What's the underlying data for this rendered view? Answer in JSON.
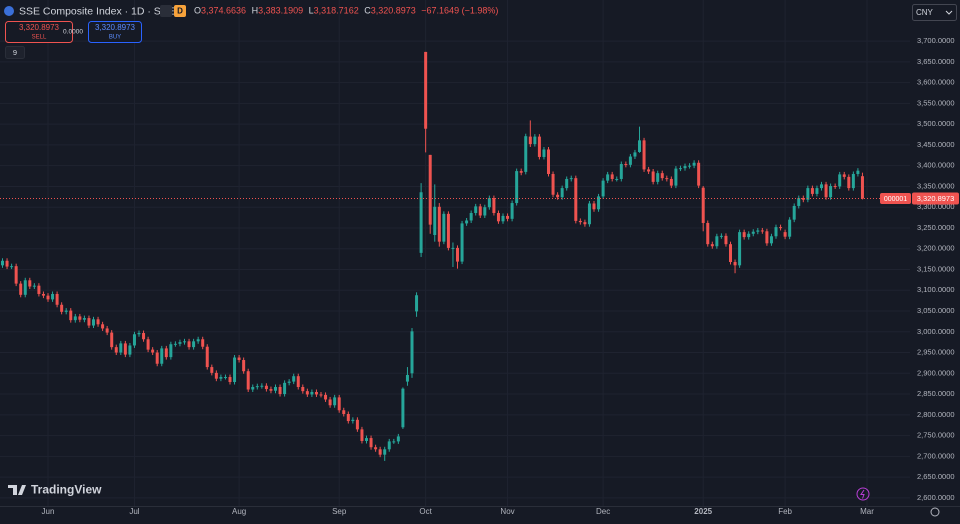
{
  "header": {
    "title": "SSE Composite Index · 1D · SSE",
    "interval_badge": "D",
    "ohlc": [
      {
        "label": "O",
        "value": "3,374.6636"
      },
      {
        "label": "H",
        "value": "3,383.1909"
      },
      {
        "label": "L",
        "value": "3,318.7162"
      },
      {
        "label": "C",
        "value": "3,320.8973"
      }
    ],
    "change": "−67.1649 (−1.98%)"
  },
  "trade": {
    "sell_price": "3,320.8973",
    "sell": "SELL",
    "spread": "0.0000",
    "buy_price": "3,320.8973",
    "buy": "BUY"
  },
  "indicators_count": "9",
  "currency": "CNY",
  "symbol_label": "000001",
  "last_price_label": "3,320.8973",
  "brand": "TradingView",
  "chart_data": {
    "type": "candlestick",
    "up_color": "#26a69a",
    "down_color": "#ef5350",
    "grid": true,
    "xlim": [
      -0.55,
      199.45
    ],
    "xticks": [
      {
        "value": 10,
        "label": "Jun"
      },
      {
        "value": 29,
        "label": "Jul"
      },
      {
        "value": 52,
        "label": "Aug"
      },
      {
        "value": 74,
        "label": "Sep"
      },
      {
        "value": 93,
        "label": "Oct"
      },
      {
        "value": 111,
        "label": "Nov"
      },
      {
        "value": 132,
        "label": "Dec"
      },
      {
        "value": 154,
        "label": "2025"
      },
      {
        "value": 172,
        "label": "Feb"
      },
      {
        "value": 190,
        "label": "Mar"
      }
    ],
    "ylim": [
      2578,
      3799
    ],
    "yticks": [
      {
        "value": 2600,
        "label": "2,600.0000"
      },
      {
        "value": 2650,
        "label": "2,650.0000"
      },
      {
        "value": 2700,
        "label": "2,700.0000"
      },
      {
        "value": 2750,
        "label": "2,750.0000"
      },
      {
        "value": 2800,
        "label": "2,800.0000"
      },
      {
        "value": 2850,
        "label": "2,850.0000"
      },
      {
        "value": 2900,
        "label": "2,900.0000"
      },
      {
        "value": 2950,
        "label": "2,950.0000"
      },
      {
        "value": 3000,
        "label": "3,000.0000"
      },
      {
        "value": 3050,
        "label": "3,050.0000"
      },
      {
        "value": 3100,
        "label": "3,100.0000"
      },
      {
        "value": 3150,
        "label": "3,150.0000"
      },
      {
        "value": 3200,
        "label": "3,200.0000"
      },
      {
        "value": 3250,
        "label": "3,250.0000"
      },
      {
        "value": 3300,
        "label": "3,300.0000"
      },
      {
        "value": 3350,
        "label": "3,350.0000"
      },
      {
        "value": 3400,
        "label": "3,400.0000"
      },
      {
        "value": 3450,
        "label": "3,450.0000"
      },
      {
        "value": 3500,
        "label": "3,500.0000"
      },
      {
        "value": 3550,
        "label": "3,550.0000"
      },
      {
        "value": 3600,
        "label": "3,600.0000"
      },
      {
        "value": 3650,
        "label": "3,650.0000"
      },
      {
        "value": 3700,
        "label": "3,700.0000"
      }
    ],
    "open": [
      3160,
      3171,
      3157,
      3158,
      3116,
      3089,
      3124,
      3109,
      3111,
      3091,
      3087,
      3078,
      3091,
      3065,
      3048,
      3051,
      3028,
      3037,
      3029,
      3033,
      3015,
      3030,
      3018,
      3008,
      2998,
      2963,
      2950,
      2972,
      2945,
      2967,
      2994,
      2997,
      2982,
      2957,
      2950,
      2923,
      2960,
      2939,
      2970,
      2971,
      2975,
      2977,
      2963,
      2977,
      2982,
      2964,
      2915,
      2901,
      2887,
      2891,
      2891,
      2879,
      2938,
      2932,
      2905,
      2861,
      2867,
      2869,
      2870,
      2862,
      2858,
      2867,
      2850,
      2877,
      2880,
      2893,
      2867,
      2857,
      2849,
      2855,
      2849,
      2848,
      2837,
      2823,
      2842,
      2811,
      2802,
      2785,
      2788,
      2765,
      2737,
      2744,
      2722,
      2717,
      2704,
      2717,
      2736,
      2736,
      2770,
      2880,
      2900,
      3049,
      3190,
      3674,
      3426,
      3233,
      3301,
      3217,
      3284,
      3202,
      3202,
      3169,
      3261,
      3268,
      3286,
      3302,
      3280,
      3300,
      3322,
      3286,
      3266,
      3279,
      3272,
      3310,
      3387,
      3385,
      3470,
      3452,
      3470,
      3421,
      3439,
      3380,
      3330,
      3324,
      3346,
      3368,
      3370,
      3267,
      3264,
      3259,
      3309,
      3295,
      3326,
      3364,
      3379,
      3368,
      3368,
      3404,
      3402,
      3422,
      3433,
      3461,
      3391,
      3386,
      3361,
      3382,
      3370,
      3368,
      3352,
      3393,
      3394,
      3399,
      3400,
      3407,
      3347,
      3262,
      3211,
      3206,
      3230,
      3231,
      3211,
      3168,
      3160,
      3240,
      3228,
      3236,
      3241,
      3244,
      3242,
      3213,
      3230,
      3252,
      3240,
      3229,
      3270,
      3303,
      3322,
      3318,
      3346,
      3332,
      3346,
      3355,
      3324,
      3351,
      3350,
      3379,
      3373,
      3346,
      3380,
      3374.6636
    ],
    "high": [
      3177,
      3177,
      3164,
      3164,
      3122,
      3130,
      3130,
      3117,
      3117,
      3097,
      3093,
      3097,
      3097,
      3071,
      3057,
      3057,
      3043,
      3043,
      3039,
      3039,
      3036,
      3036,
      3024,
      3014,
      3004,
      2969,
      2978,
      2978,
      2973,
      3000,
      3003,
      3003,
      2988,
      2963,
      2956,
      2966,
      2966,
      2976,
      2977,
      2981,
      2983,
      2983,
      2983,
      2988,
      2988,
      2970,
      2921,
      2907,
      2897,
      2897,
      2897,
      2944,
      2944,
      2938,
      2911,
      2873,
      2875,
      2876,
      2876,
      2868,
      2873,
      2873,
      2883,
      2886,
      2899,
      2899,
      2873,
      2863,
      2861,
      2861,
      2855,
      2854,
      2843,
      2848,
      2848,
      2817,
      2808,
      2794,
      2794,
      2771,
      2750,
      2750,
      2728,
      2723,
      2723,
      2742,
      2742,
      2754,
      2866,
      2915,
      3009,
      3095,
      3358,
      3674,
      3426,
      3355,
      3310,
      3290,
      3290,
      3215,
      3208,
      3267,
      3274,
      3292,
      3308,
      3308,
      3306,
      3328,
      3328,
      3292,
      3285,
      3285,
      3316,
      3393,
      3393,
      3477,
      3509,
      3476,
      3476,
      3445,
      3445,
      3386,
      3336,
      3352,
      3374,
      3376,
      3376,
      3273,
      3270,
      3315,
      3315,
      3332,
      3370,
      3385,
      3385,
      3374,
      3410,
      3410,
      3428,
      3438,
      3494,
      3467,
      3397,
      3392,
      3388,
      3388,
      3376,
      3374,
      3399,
      3400,
      3405,
      3406,
      3413,
      3413,
      3351,
      3268,
      3217,
      3236,
      3237,
      3237,
      3217,
      3174,
      3246,
      3246,
      3242,
      3247,
      3250,
      3250,
      3248,
      3236,
      3258,
      3258,
      3246,
      3276,
      3309,
      3328,
      3328,
      3352,
      3352,
      3352,
      3361,
      3361,
      3357,
      3357,
      3385,
      3385,
      3379,
      3386,
      3394,
      3383.1909
    ],
    "low": [
      3154,
      3151,
      3151,
      3110,
      3083,
      3083,
      3103,
      3103,
      3085,
      3081,
      3072,
      3072,
      3059,
      3042,
      3042,
      3022,
      3022,
      3023,
      3023,
      3009,
      3009,
      3012,
      3002,
      2992,
      2957,
      2944,
      2944,
      2939,
      2939,
      2961,
      2988,
      2976,
      2951,
      2944,
      2917,
      2917,
      2933,
      2933,
      2964,
      2965,
      2969,
      2957,
      2957,
      2971,
      2958,
      2909,
      2895,
      2881,
      2881,
      2885,
      2873,
      2873,
      2926,
      2899,
      2855,
      2855,
      2861,
      2863,
      2856,
      2852,
      2852,
      2844,
      2844,
      2871,
      2874,
      2861,
      2851,
      2843,
      2843,
      2843,
      2842,
      2831,
      2817,
      2817,
      2805,
      2796,
      2779,
      2779,
      2759,
      2731,
      2731,
      2716,
      2711,
      2698,
      2689,
      2711,
      2730,
      2730,
      2766,
      2870,
      2889,
      3036,
      3180,
      3432,
      3236,
      3217,
      3205,
      3211,
      3196,
      3156,
      3152,
      3163,
      3255,
      3262,
      3280,
      3274,
      3274,
      3294,
      3280,
      3260,
      3260,
      3266,
      3266,
      3304,
      3377,
      3379,
      3445,
      3446,
      3415,
      3415,
      3374,
      3324,
      3318,
      3318,
      3340,
      3362,
      3261,
      3258,
      3253,
      3253,
      3289,
      3289,
      3320,
      3358,
      3362,
      3362,
      3362,
      3396,
      3396,
      3416,
      3431,
      3385,
      3380,
      3355,
      3355,
      3364,
      3362,
      3346,
      3346,
      3387,
      3388,
      3393,
      3394,
      3346,
      3242,
      3205,
      3200,
      3200,
      3224,
      3205,
      3162,
      3141,
      3154,
      3222,
      3222,
      3230,
      3235,
      3236,
      3207,
      3207,
      3224,
      3244,
      3223,
      3223,
      3264,
      3297,
      3312,
      3312,
      3326,
      3326,
      3340,
      3318,
      3318,
      3344,
      3344,
      3367,
      3340,
      3340,
      3374,
      3318.7162
    ],
    "close": [
      3171,
      3157,
      3158,
      3116,
      3089,
      3124,
      3109,
      3111,
      3091,
      3087,
      3078,
      3091,
      3065,
      3048,
      3051,
      3028,
      3037,
      3029,
      3033,
      3015,
      3030,
      3018,
      3008,
      2998,
      2963,
      2950,
      2972,
      2945,
      2967,
      2994,
      2997,
      2982,
      2957,
      2950,
      2923,
      2960,
      2939,
      2970,
      2971,
      2975,
      2977,
      2963,
      2977,
      2982,
      2964,
      2915,
      2901,
      2887,
      2891,
      2891,
      2879,
      2938,
      2932,
      2905,
      2861,
      2867,
      2869,
      2870,
      2862,
      2858,
      2867,
      2850,
      2877,
      2880,
      2893,
      2867,
      2857,
      2849,
      2855,
      2849,
      2848,
      2837,
      2823,
      2842,
      2811,
      2802,
      2785,
      2788,
      2765,
      2737,
      2744,
      2722,
      2717,
      2704,
      2717,
      2736,
      2736,
      2748,
      2863,
      2896,
      3001,
      3088,
      3336,
      3489,
      3258,
      3301,
      3217,
      3284,
      3202,
      3202,
      3169,
      3261,
      3268,
      3286,
      3302,
      3280,
      3300,
      3322,
      3286,
      3266,
      3279,
      3272,
      3310,
      3387,
      3383,
      3471,
      3452,
      3470,
      3421,
      3439,
      3380,
      3330,
      3324,
      3346,
      3368,
      3370,
      3267,
      3264,
      3259,
      3309,
      3295,
      3326,
      3364,
      3379,
      3368,
      3368,
      3404,
      3402,
      3422,
      3432,
      3461,
      3391,
      3386,
      3361,
      3382,
      3370,
      3368,
      3352,
      3393,
      3394,
      3399,
      3400,
      3407,
      3352,
      3262,
      3211,
      3206,
      3230,
      3231,
      3211,
      3168,
      3160,
      3240,
      3228,
      3236,
      3241,
      3244,
      3242,
      3213,
      3230,
      3252,
      3250,
      3229,
      3270,
      3303,
      3322,
      3318,
      3346,
      3332,
      3346,
      3355,
      3324,
      3351,
      3350,
      3379,
      3373,
      3346,
      3380,
      3388,
      3320.8973
    ]
  }
}
